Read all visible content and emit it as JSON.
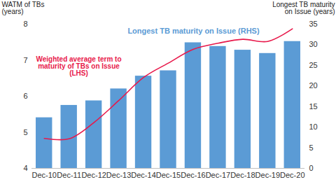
{
  "chart_data": {
    "type": "combo",
    "categories": [
      "Dec-10",
      "Dec-11",
      "Dec-12",
      "Dec-13",
      "Dec-14",
      "Dec-15",
      "Dec-16",
      "Dec-17",
      "Dec-18",
      "Dec-19",
      "Dec-20"
    ],
    "series": [
      {
        "name": "Longest TB maturity on Issue (RHS)",
        "type": "bar",
        "axis": "y2",
        "color": "#5b9bd5",
        "values": [
          12.3,
          15.3,
          16.4,
          19.3,
          22.4,
          23.7,
          30.5,
          29.6,
          28.7,
          27.9,
          30.8
        ]
      },
      {
        "name": "Weighted average term to maturity of TBs on Issue (LHS)",
        "type": "line",
        "color": "#e8184a",
        "values": [
          4.83,
          4.82,
          5.27,
          5.88,
          6.52,
          6.92,
          7.3,
          7.47,
          7.58,
          7.52,
          7.87
        ]
      }
    ],
    "ylabel": [
      "WATM of TBs",
      "(years)"
    ],
    "y2label": [
      "Longest TB maturity",
      "on Issue (years)"
    ],
    "ylim": [
      4,
      8
    ],
    "yticks": [
      4,
      5,
      6,
      7,
      8
    ],
    "y2lim": [
      0,
      35
    ],
    "y2ticks": [
      0,
      5,
      10,
      15,
      20,
      25,
      30,
      35
    ]
  }
}
